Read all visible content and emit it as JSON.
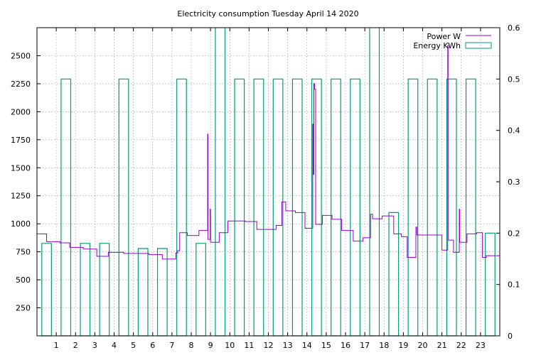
{
  "chart_data": {
    "type": "line",
    "title": "Electricity consumption Tuesday April 14 2020",
    "xlabel": "",
    "ylabel": "",
    "x_range": [
      0,
      24
    ],
    "x_ticks": [
      1,
      2,
      3,
      4,
      5,
      6,
      7,
      8,
      9,
      10,
      11,
      12,
      13,
      14,
      15,
      16,
      17,
      18,
      19,
      20,
      21,
      22,
      23
    ],
    "y_range": [
      0,
      2750
    ],
    "y_ticks": [
      250,
      500,
      750,
      1000,
      1250,
      1500,
      1750,
      2000,
      2250,
      2500
    ],
    "y2_range": [
      0,
      0.6
    ],
    "y2_ticks": [
      0,
      0.1,
      0.2,
      0.3,
      0.4,
      0.5,
      0.6
    ],
    "grid": true,
    "legend_position": "top-right",
    "series": [
      {
        "name": "Power W",
        "color": "#9400d3",
        "axis": "y",
        "style": "steps",
        "points": [
          [
            0,
            910
          ],
          [
            0.5,
            840
          ],
          [
            1.2,
            830
          ],
          [
            1.7,
            790
          ],
          [
            2.4,
            775
          ],
          [
            3.1,
            710
          ],
          [
            3.7,
            745
          ],
          [
            4.5,
            735
          ],
          [
            5.8,
            725
          ],
          [
            6.5,
            685
          ],
          [
            7.2,
            740
          ],
          [
            7.3,
            760
          ],
          [
            7.4,
            920
          ],
          [
            7.8,
            895
          ],
          [
            8.4,
            940
          ],
          [
            8.85,
            1800
          ],
          [
            8.87,
            860
          ],
          [
            8.98,
            1130
          ],
          [
            9.0,
            835
          ],
          [
            9.45,
            920
          ],
          [
            9.9,
            1025
          ],
          [
            10.8,
            1020
          ],
          [
            11.4,
            950
          ],
          [
            12.4,
            985
          ],
          [
            12.7,
            1195
          ],
          [
            12.9,
            1115
          ],
          [
            13.4,
            1100
          ],
          [
            13.9,
            960
          ],
          [
            14.3,
            1890
          ],
          [
            14.32,
            1440
          ],
          [
            14.36,
            2250
          ],
          [
            14.4,
            2200
          ],
          [
            14.45,
            995
          ],
          [
            14.8,
            1075
          ],
          [
            15.3,
            1040
          ],
          [
            15.8,
            940
          ],
          [
            16.4,
            845
          ],
          [
            16.9,
            875
          ],
          [
            17.3,
            1085
          ],
          [
            17.4,
            1045
          ],
          [
            17.9,
            1070
          ],
          [
            18.5,
            910
          ],
          [
            18.9,
            885
          ],
          [
            19.2,
            700
          ],
          [
            19.65,
            970
          ],
          [
            19.7,
            900
          ],
          [
            21.0,
            765
          ],
          [
            21.3,
            2590
          ],
          [
            21.32,
            855
          ],
          [
            21.6,
            745
          ],
          [
            21.9,
            1130
          ],
          [
            21.92,
            835
          ],
          [
            22.3,
            910
          ],
          [
            22.8,
            920
          ],
          [
            23.1,
            700
          ],
          [
            23.3,
            715
          ],
          [
            24,
            715
          ]
        ]
      },
      {
        "name": "Energy KWh",
        "color": "#009e73",
        "axis": "y2",
        "style": "boxes",
        "box_width": 0.5,
        "values": [
          0.18,
          0.5,
          0.18,
          0.18,
          0.5,
          0.17,
          0.17,
          0.5,
          0.18,
          0.6,
          0.5,
          0.5,
          0.5,
          0.5,
          0.5,
          0.5,
          0.5,
          0.6,
          0.24,
          0.5,
          0.5,
          0.5,
          0.5,
          0.2
        ]
      }
    ]
  }
}
